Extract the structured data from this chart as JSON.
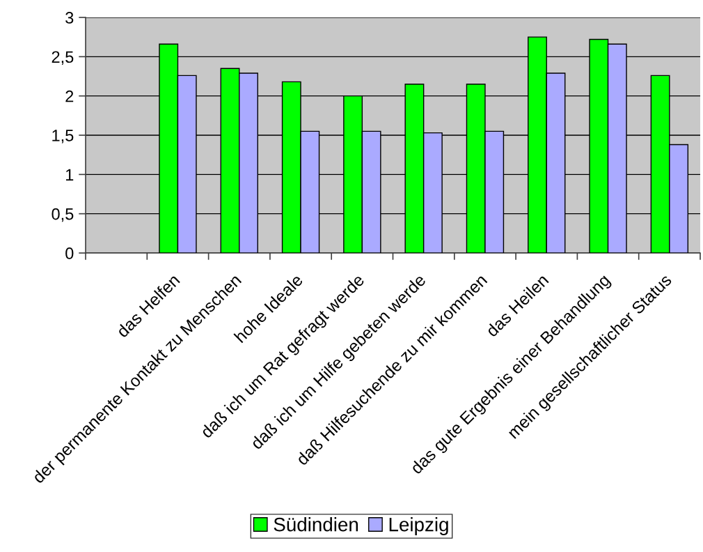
{
  "chart_data": {
    "type": "bar",
    "categories": [
      null,
      "das Helfen",
      "der permanente Kontakt zu Menschen",
      "hohe Ideale",
      "daß ich um Rat gefragt werde",
      "daß ich um Hilfe gebeten werde",
      "daß Hilfesuchende zu mir kommen",
      "das Heilen",
      "das gute Ergebnis einer Behandlung",
      "mein gesellschaftlicher Status"
    ],
    "series": [
      {
        "name": "Südindien",
        "color": "#00ff00",
        "values": [
          null,
          2.66,
          2.35,
          2.18,
          2.0,
          2.15,
          2.15,
          2.75,
          2.72,
          2.26
        ]
      },
      {
        "name": "Leipzig",
        "color": "#aaaaff",
        "values": [
          null,
          2.26,
          2.29,
          1.55,
          1.55,
          1.53,
          1.55,
          2.29,
          2.66,
          1.38
        ]
      }
    ],
    "ylim": [
      0,
      3
    ],
    "yticks": [
      0,
      {
        "value": 0.5,
        "label": "0,5"
      },
      1,
      {
        "value": 1.5,
        "label": "1,5"
      },
      2,
      {
        "value": 2.5,
        "label": "2,5"
      },
      3
    ],
    "grid": "y",
    "legend": "bottom"
  }
}
